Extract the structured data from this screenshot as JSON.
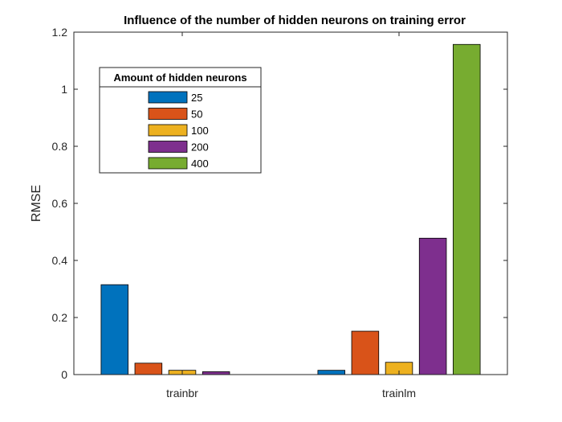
{
  "chart_data": {
    "type": "bar",
    "title": "Influence of the number of hidden neurons on training error",
    "xlabel": "",
    "ylabel": "RMSE",
    "categories": [
      "trainbr",
      "trainlm"
    ],
    "ylim": [
      0,
      1.2
    ],
    "yticks": [
      0,
      0.2,
      0.4,
      0.6,
      0.8,
      1,
      1.2
    ],
    "ytick_labels": [
      "0",
      "0.2",
      "0.4",
      "0.6",
      "0.8",
      "1",
      "1.2"
    ],
    "grid": false,
    "legend": {
      "title": "Amount of hidden neurons",
      "placement": "top-left"
    },
    "series": [
      {
        "name": "25",
        "color": "#0072BD",
        "values": [
          0.315,
          0.015
        ]
      },
      {
        "name": "50",
        "color": "#D95319",
        "values": [
          0.04,
          0.152
        ]
      },
      {
        "name": "100",
        "color": "#EDB120",
        "values": [
          0.015,
          0.043
        ]
      },
      {
        "name": "200",
        "color": "#7E2F8E",
        "values": [
          0.01,
          0.478
        ]
      },
      {
        "name": "400",
        "color": "#77AC30",
        "values": [
          0.0,
          1.157
        ]
      }
    ]
  }
}
